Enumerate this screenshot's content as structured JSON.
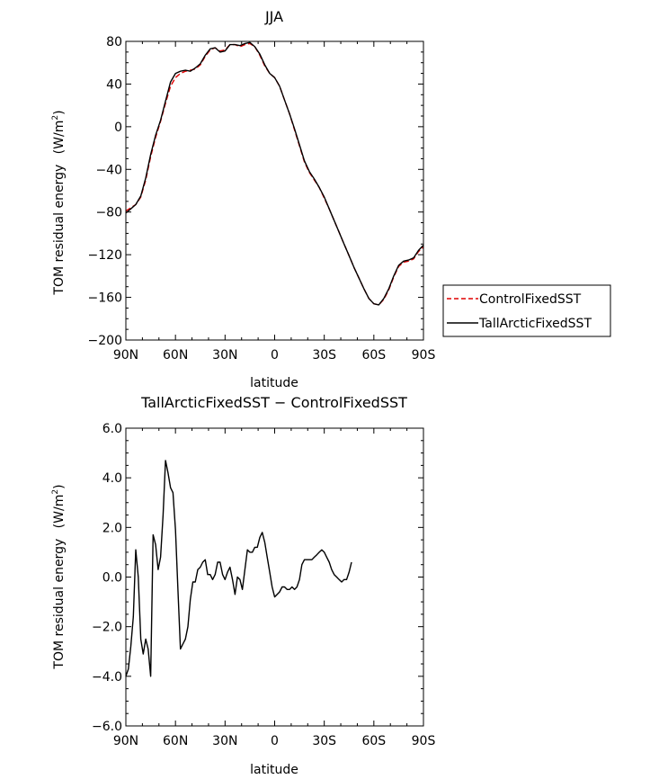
{
  "chart_data": [
    {
      "type": "line",
      "title": "JJA",
      "xlabel": "latitude",
      "ylabel": "TOM residual energy",
      "ylabel_unit_prefix": "(W/m",
      "ylabel_unit_sup": "2",
      "ylabel_unit_suffix": ")",
      "x_range_deg": [
        90,
        -90
      ],
      "x_ticks": [
        {
          "v": 90,
          "label": "90N"
        },
        {
          "v": 60,
          "label": "60N"
        },
        {
          "v": 30,
          "label": "30N"
        },
        {
          "v": 0,
          "label": "0"
        },
        {
          "v": -30,
          "label": "30S"
        },
        {
          "v": -60,
          "label": "60S"
        },
        {
          "v": -90,
          "label": "90S"
        }
      ],
      "ylim": [
        -200,
        80
      ],
      "y_ticks": [
        {
          "v": 80,
          "label": "80"
        },
        {
          "v": 40,
          "label": "40"
        },
        {
          "v": 0,
          "label": "0"
        },
        {
          "v": -40,
          "label": "−40"
        },
        {
          "v": -80,
          "label": "−80"
        },
        {
          "v": -120,
          "label": "−120"
        },
        {
          "v": -160,
          "label": "−160"
        },
        {
          "v": -200,
          "label": "−200"
        }
      ],
      "legend_position": "right",
      "series": [
        {
          "name": "ControlFixedSST",
          "color": "#e00000",
          "dash": "dashed",
          "points": [
            [
              90,
              -79
            ],
            [
              87,
              -76
            ],
            [
              84,
              -73
            ],
            [
              81,
              -66
            ],
            [
              78,
              -50
            ],
            [
              75,
              -28
            ],
            [
              72,
              -10
            ],
            [
              69,
              5
            ],
            [
              66,
              22
            ],
            [
              63,
              38
            ],
            [
              60,
              46
            ],
            [
              57,
              50
            ],
            [
              54,
              52
            ],
            [
              51,
              53
            ],
            [
              48,
              54
            ],
            [
              45,
              58
            ],
            [
              42,
              66
            ],
            [
              39,
              72
            ],
            [
              36,
              74
            ],
            [
              33,
              71
            ],
            [
              30,
              72
            ],
            [
              27,
              77
            ],
            [
              24,
              77
            ],
            [
              21,
              75
            ],
            [
              18,
              77
            ],
            [
              15,
              78
            ],
            [
              12,
              75
            ],
            [
              9,
              67
            ],
            [
              6,
              57
            ],
            [
              3,
              50
            ],
            [
              0,
              46
            ],
            [
              -3,
              38
            ],
            [
              -6,
              25
            ],
            [
              -9,
              12
            ],
            [
              -12,
              -3
            ],
            [
              -15,
              -18
            ],
            [
              -18,
              -33
            ],
            [
              -21,
              -43
            ],
            [
              -24,
              -50
            ],
            [
              -27,
              -57
            ],
            [
              -30,
              -67
            ],
            [
              -33,
              -77
            ],
            [
              -36,
              -88
            ],
            [
              -39,
              -99
            ],
            [
              -42,
              -110
            ],
            [
              -45,
              -121
            ],
            [
              -48,
              -132
            ],
            [
              -51,
              -142
            ],
            [
              -54,
              -152
            ],
            [
              -57,
              -161
            ],
            [
              -60,
              -166
            ],
            [
              -63,
              -167
            ],
            [
              -66,
              -162
            ],
            [
              -69,
              -153
            ],
            [
              -72,
              -141
            ],
            [
              -75,
              -131
            ],
            [
              -78,
              -127
            ],
            [
              -81,
              -126
            ],
            [
              -84,
              -124
            ],
            [
              -87,
              -117
            ],
            [
              -90,
              -113
            ]
          ]
        },
        {
          "name": "TallArcticFixedSST",
          "color": "#000000",
          "dash": "solid",
          "points": [
            [
              90,
              -81
            ],
            [
              87,
              -77
            ],
            [
              84,
              -73
            ],
            [
              81,
              -65
            ],
            [
              78,
              -48
            ],
            [
              75,
              -26
            ],
            [
              72,
              -8
            ],
            [
              69,
              6
            ],
            [
              66,
              24
            ],
            [
              63,
              42
            ],
            [
              60,
              50
            ],
            [
              57,
              52
            ],
            [
              54,
              53
            ],
            [
              51,
              52
            ],
            [
              48,
              55
            ],
            [
              45,
              59
            ],
            [
              42,
              67
            ],
            [
              39,
              73
            ],
            [
              36,
              74
            ],
            [
              33,
              70
            ],
            [
              30,
              71
            ],
            [
              27,
              77
            ],
            [
              24,
              77
            ],
            [
              21,
              76
            ],
            [
              18,
              78
            ],
            [
              15,
              79
            ],
            [
              12,
              75
            ],
            [
              9,
              68
            ],
            [
              6,
              58
            ],
            [
              3,
              50
            ],
            [
              0,
              46
            ],
            [
              -3,
              38
            ],
            [
              -6,
              25
            ],
            [
              -9,
              12
            ],
            [
              -12,
              -2
            ],
            [
              -15,
              -17
            ],
            [
              -18,
              -32
            ],
            [
              -21,
              -42
            ],
            [
              -24,
              -49
            ],
            [
              -27,
              -57
            ],
            [
              -30,
              -66
            ],
            [
              -33,
              -77
            ],
            [
              -36,
              -88
            ],
            [
              -39,
              -99
            ],
            [
              -42,
              -110
            ],
            [
              -45,
              -121
            ],
            [
              -48,
              -132
            ],
            [
              -51,
              -142
            ],
            [
              -54,
              -152
            ],
            [
              -57,
              -161
            ],
            [
              -60,
              -166
            ],
            [
              -63,
              -167
            ],
            [
              -66,
              -161
            ],
            [
              -69,
              -152
            ],
            [
              -72,
              -140
            ],
            [
              -75,
              -130
            ],
            [
              -78,
              -126
            ],
            [
              -81,
              -125
            ],
            [
              -84,
              -123
            ],
            [
              -87,
              -116
            ],
            [
              -90,
              -111
            ]
          ]
        }
      ]
    },
    {
      "type": "line",
      "title": "TallArcticFixedSST − ControlFixedSST",
      "xlabel": "latitude",
      "ylabel": "TOM residual energy",
      "ylabel_unit_prefix": "(W/m",
      "ylabel_unit_sup": "2",
      "ylabel_unit_suffix": ")",
      "x_range_deg": [
        90,
        -90
      ],
      "x_ticks": [
        {
          "v": 90,
          "label": "90N"
        },
        {
          "v": 60,
          "label": "60N"
        },
        {
          "v": 30,
          "label": "30N"
        },
        {
          "v": 0,
          "label": "0"
        },
        {
          "v": -30,
          "label": "30S"
        },
        {
          "v": -60,
          "label": "60S"
        },
        {
          "v": -90,
          "label": "90S"
        }
      ],
      "ylim": [
        -6,
        6
      ],
      "y_ticks": [
        {
          "v": 6,
          "label": "6.0"
        },
        {
          "v": 4,
          "label": "4.0"
        },
        {
          "v": 2,
          "label": "2.0"
        },
        {
          "v": 0,
          "label": "0.0"
        },
        {
          "v": -2,
          "label": "−2.0"
        },
        {
          "v": -4,
          "label": "−4.0"
        },
        {
          "v": -6,
          "label": "−6.0"
        }
      ],
      "series": [
        {
          "color": "#000000",
          "dash": "solid",
          "points": [
            [
              90,
              -4.0
            ],
            [
              88.5,
              -3.7
            ],
            [
              87,
              -2.8
            ],
            [
              85.5,
              -1.6
            ],
            [
              84,
              1.1
            ],
            [
              82.5,
              0.0
            ],
            [
              81,
              -2.5
            ],
            [
              79.5,
              -3.1
            ],
            [
              78,
              -2.5
            ],
            [
              76.5,
              -2.9
            ],
            [
              75,
              -4.0
            ],
            [
              73.5,
              1.7
            ],
            [
              72,
              1.3
            ],
            [
              70.5,
              0.3
            ],
            [
              69,
              0.8
            ],
            [
              67.5,
              2.5
            ],
            [
              66,
              4.7
            ],
            [
              64.5,
              4.2
            ],
            [
              63,
              3.6
            ],
            [
              61.5,
              3.4
            ],
            [
              60,
              1.9
            ],
            [
              58.5,
              -0.5
            ],
            [
              57,
              -2.9
            ],
            [
              55.5,
              -2.7
            ],
            [
              54,
              -2.5
            ],
            [
              52.5,
              -2.0
            ],
            [
              51,
              -0.9
            ],
            [
              49.5,
              -0.2
            ],
            [
              48,
              -0.2
            ],
            [
              46.5,
              0.3
            ],
            [
              45,
              0.4
            ],
            [
              43.5,
              0.6
            ],
            [
              42,
              0.7
            ],
            [
              40.5,
              0.1
            ],
            [
              39,
              0.1
            ],
            [
              37.5,
              -0.1
            ],
            [
              36,
              0.1
            ],
            [
              34.5,
              0.6
            ],
            [
              33,
              0.6
            ],
            [
              31.5,
              0.1
            ],
            [
              30,
              -0.1
            ],
            [
              28.5,
              0.2
            ],
            [
              27,
              0.4
            ],
            [
              25.5,
              -0.1
            ],
            [
              24,
              -0.7
            ],
            [
              22.5,
              0.0
            ],
            [
              21,
              -0.1
            ],
            [
              19.5,
              -0.5
            ],
            [
              18,
              0.3
            ],
            [
              16.5,
              1.1
            ],
            [
              15,
              1.0
            ],
            [
              13.5,
              1.0
            ],
            [
              12,
              1.2
            ],
            [
              10.5,
              1.2
            ],
            [
              9,
              1.6
            ],
            [
              7.5,
              1.8
            ],
            [
              6,
              1.4
            ],
            [
              4.5,
              0.8
            ],
            [
              3,
              0.2
            ],
            [
              1.5,
              -0.4
            ],
            [
              0,
              -0.8
            ],
            [
              -1.5,
              -0.7
            ],
            [
              -3,
              -0.6
            ],
            [
              -4.5,
              -0.4
            ],
            [
              -6,
              -0.4
            ],
            [
              -7.5,
              -0.5
            ],
            [
              -9,
              -0.5
            ],
            [
              -10.5,
              -0.4
            ],
            [
              -12,
              -0.5
            ],
            [
              -13.5,
              -0.4
            ],
            [
              -15,
              -0.1
            ],
            [
              -16.5,
              0.5
            ],
            [
              -18,
              0.7
            ],
            [
              -19.5,
              0.7
            ],
            [
              -21,
              0.7
            ],
            [
              -22.5,
              0.7
            ],
            [
              -24,
              0.8
            ],
            [
              -25.5,
              0.9
            ],
            [
              -27,
              1.0
            ],
            [
              -28.5,
              1.1
            ],
            [
              -30,
              1.0
            ],
            [
              -31.5,
              0.8
            ],
            [
              -33,
              0.6
            ],
            [
              -34.5,
              0.3
            ],
            [
              -36,
              0.1
            ],
            [
              -37.5,
              0.0
            ],
            [
              -39,
              -0.1
            ],
            [
              -40.5,
              -0.2
            ],
            [
              -42,
              -0.1
            ],
            [
              -43.5,
              -0.1
            ],
            [
              -45,
              0.2
            ],
            [
              -46.5,
              0.6
            ]
          ]
        }
      ]
    }
  ]
}
